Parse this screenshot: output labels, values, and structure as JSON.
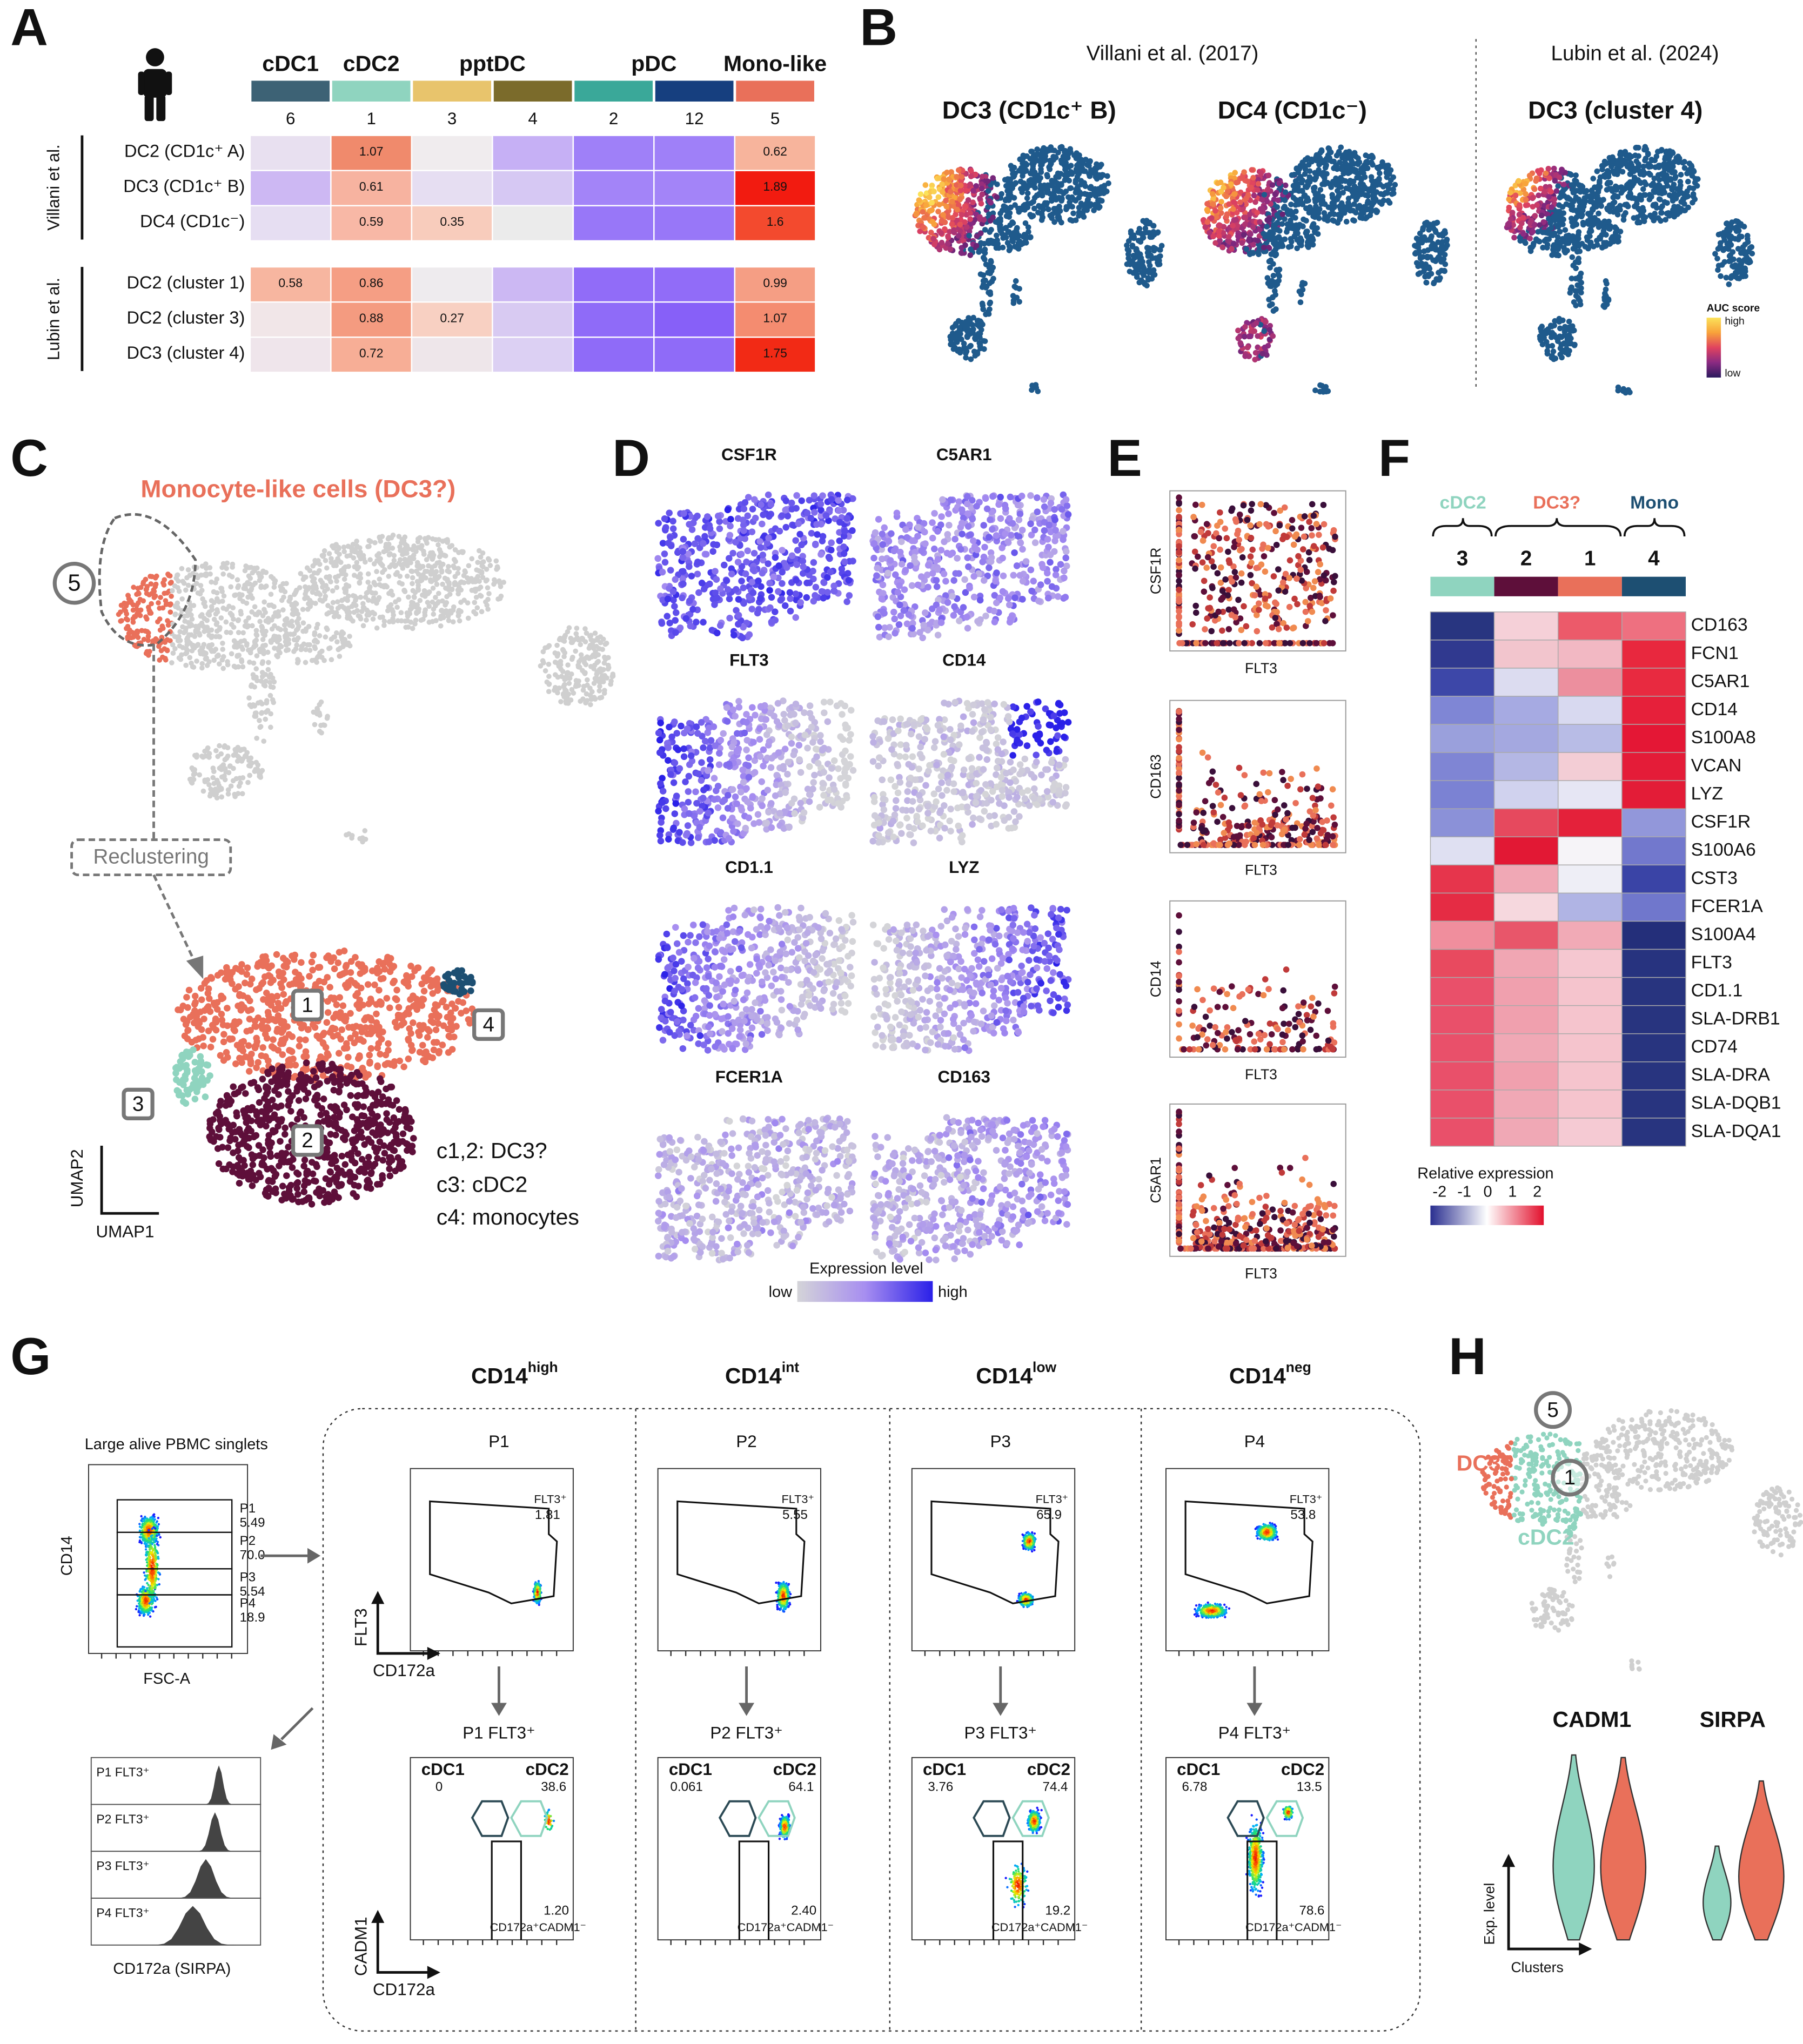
{
  "A": {
    "letter": "A",
    "groups": [
      "cDC1",
      "cDC2",
      "pptDC",
      "pDC",
      "Mono-like"
    ],
    "clusters": [
      "6",
      "1",
      "3",
      "4",
      "2",
      "12",
      "5"
    ],
    "row_groups": [
      {
        "label": "Villani et al.",
        "rows": [
          "DC2 (CD1c⁺ A)",
          "DC3 (CD1c⁺ B)",
          "DC4 (CD1c⁻)"
        ]
      },
      {
        "label": "Lubin et al.",
        "rows": [
          "DC2 (cluster 1)",
          "DC2 (cluster 3)",
          "DC3 (cluster 4)"
        ]
      }
    ],
    "cell_labels": [
      [
        null,
        "1.07",
        null,
        null,
        null,
        null,
        "0.62"
      ],
      [
        null,
        "0.61",
        null,
        null,
        null,
        null,
        "1.89"
      ],
      [
        null,
        "0.59",
        "0.35",
        null,
        null,
        null,
        "1.6"
      ],
      [
        "0.58",
        "0.86",
        null,
        null,
        null,
        null,
        "0.99"
      ],
      [
        null,
        "0.88",
        "0.27",
        null,
        null,
        null,
        "1.07"
      ],
      [
        null,
        "0.72",
        null,
        null,
        null,
        null,
        "1.75"
      ]
    ]
  },
  "B": {
    "letter": "B",
    "source_left": "Villani et al. (2017)",
    "source_right": "Lubin et al. (2024)",
    "maps": [
      "DC3 (CD1c⁺ B)",
      "DC4 (CD1c⁻)",
      "DC3 (cluster 4)"
    ],
    "legend": {
      "title": "AUC score",
      "high": "high",
      "low": "low"
    }
  },
  "C": {
    "letter": "C",
    "title": "Monocyte-like cells (DC3?)",
    "cluster_label": "5",
    "step": "Reclustering",
    "subclusters": [
      "1",
      "2",
      "3",
      "4"
    ],
    "notes": [
      "c1,2: DC3?",
      "c3: cDC2",
      "c4: monocytes"
    ],
    "y_axis": "UMAP2",
    "x_axis": "UMAP1"
  },
  "D": {
    "letter": "D",
    "genes": [
      "CSF1R",
      "C5AR1",
      "FLT3",
      "CD14",
      "CD1.1",
      "LYZ",
      "FCER1A",
      "CD163"
    ],
    "legend": {
      "title": "Expression level",
      "low": "low",
      "high": "high"
    }
  },
  "E": {
    "letter": "E",
    "y_labels": [
      "CSF1R",
      "CD163",
      "CD14",
      "C5AR1"
    ],
    "x_label": "FLT3"
  },
  "F": {
    "letter": "F",
    "groups": [
      "cDC2",
      "DC3?",
      "Mono"
    ],
    "clusters": [
      "3",
      "2",
      "1",
      "4"
    ],
    "genes": [
      "CD163",
      "FCN1",
      "C5AR1",
      "CD14",
      "S100A8",
      "VCAN",
      "LYZ",
      "CSF1R",
      "S100A6",
      "CST3",
      "FCER1A",
      "S100A4",
      "FLT3",
      "CD1.1",
      "SLA-DRB1",
      "CD74",
      "SLA-DRA",
      "SLA-DQB1",
      "SLA-DQA1"
    ],
    "legend": {
      "title": "Relative expression",
      "ticks": [
        "-2",
        "-1",
        "0",
        "1",
        "2"
      ]
    }
  },
  "G": {
    "letter": "G",
    "gate_title": "Large alive PBMC singlets",
    "gate_y": "CD14",
    "gate_x": "FSC-A",
    "gates": [
      {
        "name": "P1",
        "value": "5.49"
      },
      {
        "name": "P2",
        "value": "70.0"
      },
      {
        "name": "P3",
        "value": "5.54"
      },
      {
        "name": "P4",
        "value": "18.9"
      }
    ],
    "histograms": [
      "P1 FLT3⁺",
      "P2 FLT3⁺",
      "P3 FLT3⁺",
      "P4 FLT3⁺"
    ],
    "hist_x": "CD172a (SIRPA)",
    "top_axes": {
      "y": "FLT3",
      "x": "CD172a"
    },
    "bottom_axes": {
      "y": "CADM1",
      "x": "CD172a"
    },
    "columns": [
      {
        "header": {
          "base": "CD14",
          "sup": "high"
        },
        "pop": "P1",
        "flt3_gate": "FLT3⁺",
        "flt3_value": "1.81",
        "sub_title": "P1 FLT3⁺",
        "cdc1": "cDC1",
        "cdc1_value": "0",
        "cdc2": "cDC2",
        "cdc2_value": "38.6",
        "neg_value": "1.20",
        "neg_label": "CD172a⁺CADM1⁻"
      },
      {
        "header": {
          "base": "CD14",
          "sup": "int"
        },
        "pop": "P2",
        "flt3_gate": "FLT3⁺",
        "flt3_value": "5.55",
        "sub_title": "P2 FLT3⁺",
        "cdc1": "cDC1",
        "cdc1_value": "0.061",
        "cdc2": "cDC2",
        "cdc2_value": "64.1",
        "neg_value": "2.40",
        "neg_label": "CD172a⁺CADM1⁻"
      },
      {
        "header": {
          "base": "CD14",
          "sup": "low"
        },
        "pop": "P3",
        "flt3_gate": "FLT3⁺",
        "flt3_value": "65.9",
        "sub_title": "P3 FLT3⁺",
        "cdc1": "cDC1",
        "cdc1_value": "3.76",
        "cdc2": "cDC2",
        "cdc2_value": "74.4",
        "neg_value": "19.2",
        "neg_label": "CD172a⁺CADM1⁻"
      },
      {
        "header": {
          "base": "CD14",
          "sup": "neg"
        },
        "pop": "P4",
        "flt3_gate": "FLT3⁺",
        "flt3_value": "53.8",
        "sub_title": "P4 FLT3⁺",
        "cdc1": "cDC1",
        "cdc1_value": "6.78",
        "cdc2": "cDC2",
        "cdc2_value": "13.5",
        "neg_value": "78.6",
        "neg_label": "CD172a⁺CADM1⁻"
      }
    ]
  },
  "H": {
    "letter": "H",
    "cluster_a": "5",
    "cluster_b": "1",
    "label_a": "DC3?",
    "label_b": "cDC2",
    "genes": [
      "CADM1",
      "SIRPA"
    ],
    "y_axis": "Exp. level",
    "x_axis": "Clusters"
  }
}
